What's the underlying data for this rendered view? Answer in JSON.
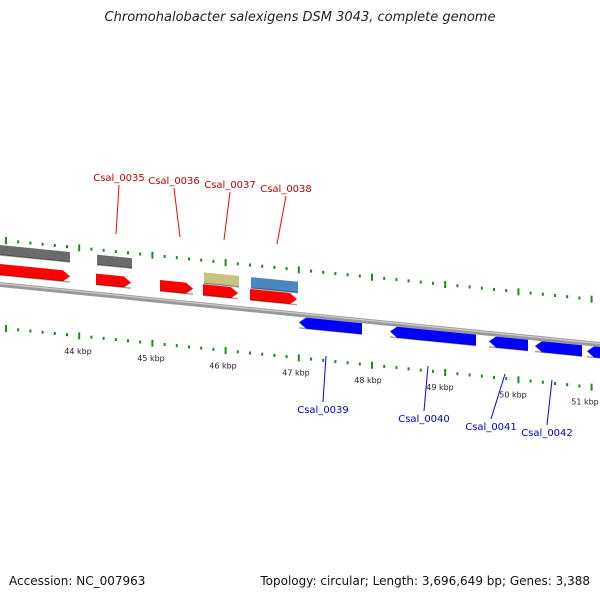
{
  "title": "Chromohalobacter salexigens DSM 3043, complete genome",
  "footer": {
    "accession": "Accession: NC_007963",
    "summary": "Topology: circular; Length: 3,696,649 bp; Genes: 3,388"
  },
  "colors": {
    "forward_cds": "#ff0000",
    "reverse_cds": "#0000ff",
    "other_gene": "#6b6b6b",
    "misc_gene": "#c8c381",
    "highlight_gene": "#4a86c0",
    "gc_tick": "#1e8a1e",
    "backbone": "#808080"
  },
  "scale_labels": [
    {
      "text": "44 kbp",
      "kbp": 44
    },
    {
      "text": "45 kbp",
      "kbp": 45
    },
    {
      "text": "46 kbp",
      "kbp": 46
    },
    {
      "text": "47 kbp",
      "kbp": 47
    },
    {
      "text": "48 kbp",
      "kbp": 48
    },
    {
      "text": "49 kbp",
      "kbp": 49
    },
    {
      "text": "50 kbp",
      "kbp": 50
    },
    {
      "text": "51 kbp",
      "kbp": 51
    }
  ],
  "top_genes": [
    {
      "label": "Csal_0035"
    },
    {
      "label": "Csal_0036"
    },
    {
      "label": "Csal_0037"
    },
    {
      "label": "Csal_0038"
    }
  ],
  "bottom_genes": [
    {
      "label": "Csal_0039"
    },
    {
      "label": "Csal_0040"
    },
    {
      "label": "Csal_0041"
    },
    {
      "label": "Csal_0042"
    }
  ]
}
